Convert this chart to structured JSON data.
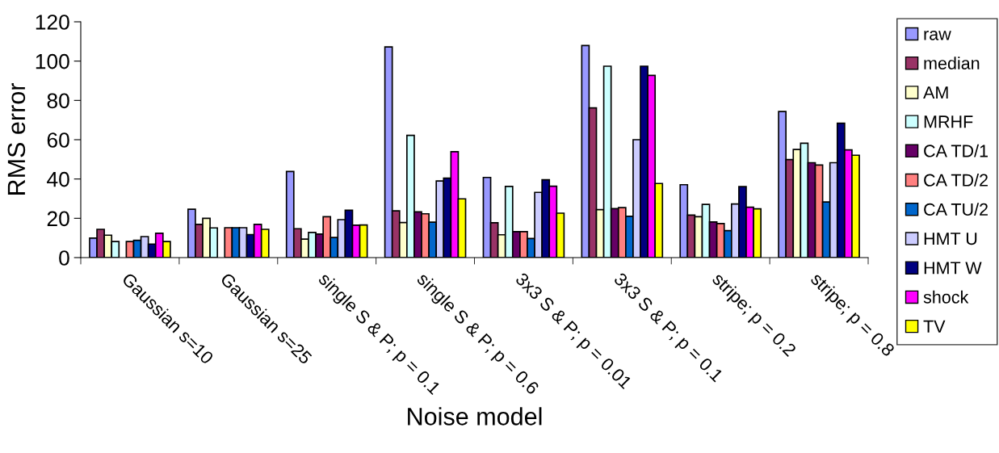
{
  "chart_data": {
    "type": "bar",
    "xlabel": "Noise model",
    "ylabel": "RMS error",
    "categories": [
      "Gaussian s=10",
      "Gaussian s=25",
      "single S & P; p = 0.1",
      "single S & P; p = 0.6",
      "3x3 S & P; p = 0.01",
      "3x3 S & P; p = 0.1",
      "stripe; p = 0.2",
      "stripe; p = 0.8"
    ],
    "series": [
      {
        "name": "raw",
        "color": "#9999ff",
        "values": [
          9.9,
          24.6,
          43.8,
          107.2,
          40.8,
          107.9,
          37.1,
          74.3
        ]
      },
      {
        "name": "median",
        "color": "#993366",
        "values": [
          14.4,
          16.9,
          14.7,
          23.8,
          17.7,
          76.2,
          21.6,
          49.9
        ]
      },
      {
        "name": "AM",
        "color": "#ffffcc",
        "values": [
          11.4,
          20,
          9.4,
          17.8,
          11.6,
          24.4,
          20.8,
          55
        ]
      },
      {
        "name": "MRHF",
        "color": "#ccffff",
        "values": [
          8.2,
          15.1,
          12.8,
          62.2,
          36.2,
          97.4,
          27.1,
          58.2
        ]
      },
      {
        "name": "CA TD/1",
        "color": "#660066",
        "values": [
          null,
          null,
          12,
          23.3,
          13.2,
          24.9,
          18.1,
          48.3
        ]
      },
      {
        "name": "CA TD/2",
        "color": "#ff8080",
        "values": [
          8.2,
          15.2,
          20.8,
          22.3,
          13.2,
          25.4,
          17.3,
          47.1
        ]
      },
      {
        "name": "CA TU/2",
        "color": "#0066cc",
        "values": [
          8.8,
          15.2,
          10.2,
          18,
          9.7,
          21,
          13.7,
          28.3
        ]
      },
      {
        "name": "HMT U",
        "color": "#ccccff",
        "values": [
          10.7,
          15.2,
          19.3,
          39,
          33.2,
          60,
          27.3,
          48.3
        ]
      },
      {
        "name": "HMT W",
        "color": "#000080",
        "values": [
          6.9,
          11.7,
          24.1,
          40.4,
          39.6,
          97.4,
          36.1,
          68.4
        ]
      },
      {
        "name": "shock",
        "color": "#ff00ff",
        "values": [
          12.4,
          16.9,
          16.5,
          53.9,
          36.3,
          92.7,
          25.6,
          54.8
        ]
      },
      {
        "name": "TV",
        "color": "#ffff00",
        "values": [
          8.2,
          14.4,
          16.6,
          29.9,
          22.6,
          37.7,
          24.8,
          52.1
        ]
      }
    ],
    "ylim": [
      0,
      120
    ],
    "yticks": [
      0,
      20,
      40,
      60,
      80,
      100,
      120
    ],
    "grid": false,
    "legend": "right"
  }
}
